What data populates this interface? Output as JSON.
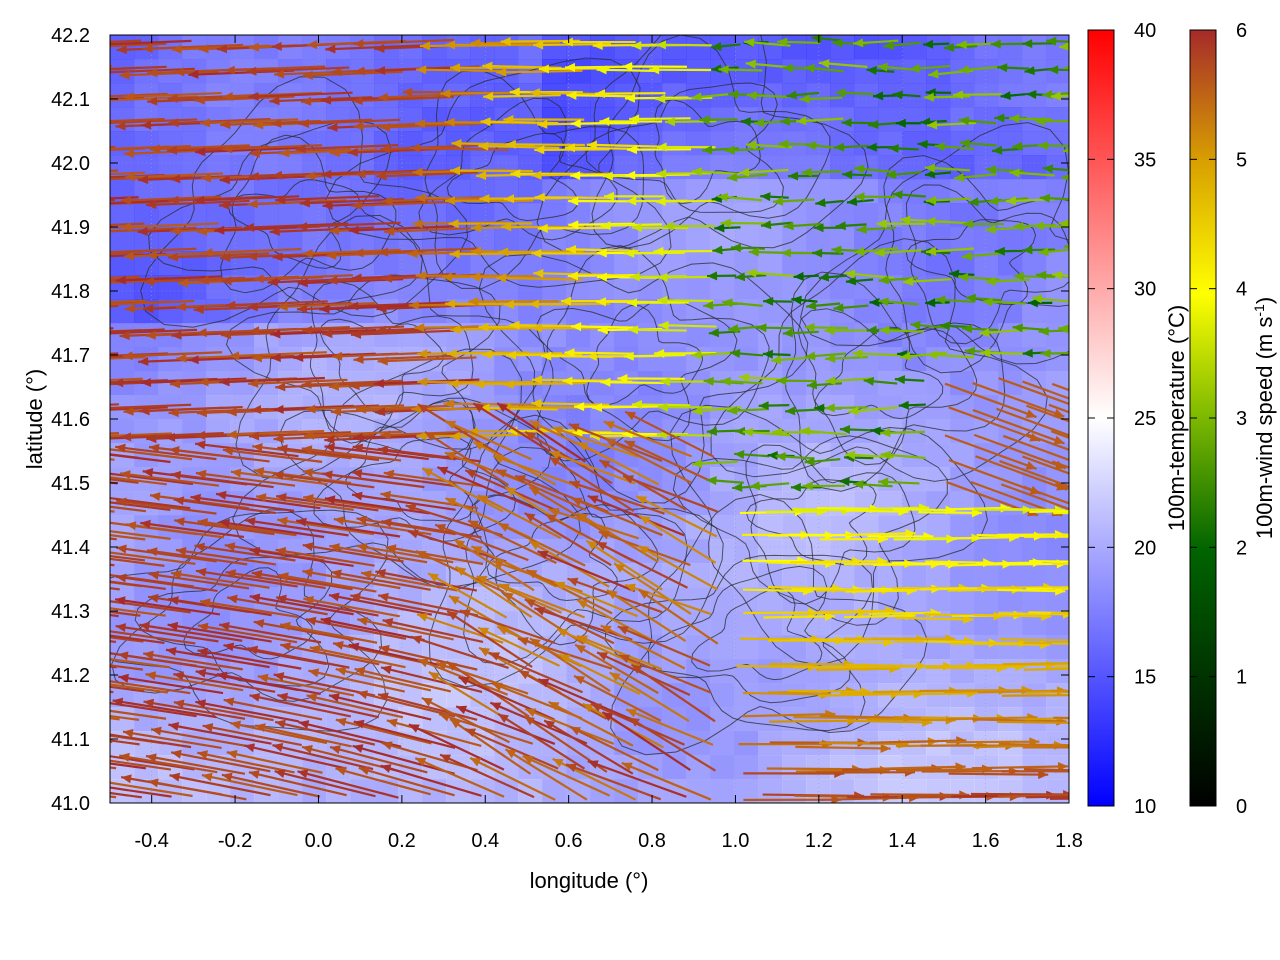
{
  "chart_data": {
    "type": "heatmap",
    "overlays": [
      "wind-vectors",
      "terrain-contours"
    ],
    "title": "",
    "xlabel": "longitude (°)",
    "ylabel": "latitude (°)",
    "xlim": [
      -0.5,
      1.8
    ],
    "ylim": [
      41.0,
      42.2
    ],
    "xticks": [
      -0.4,
      -0.2,
      0.0,
      0.2,
      0.4,
      0.6,
      0.8,
      1.0,
      1.2,
      1.4,
      1.6,
      1.8
    ],
    "xtick_labels": [
      "-0.4",
      "-0.2",
      "0.0",
      "0.2",
      "0.4",
      "0.6",
      "0.8",
      "1.0",
      "1.2",
      "1.4",
      "1.6",
      "1.8"
    ],
    "yticks": [
      41.0,
      41.1,
      41.2,
      41.3,
      41.4,
      41.5,
      41.6,
      41.7,
      41.8,
      41.9,
      42.0,
      42.1,
      42.2
    ],
    "ytick_labels": [
      "41.0",
      "41.1",
      "41.2",
      "41.3",
      "41.4",
      "41.5",
      "41.6",
      "41.7",
      "41.8",
      "41.9",
      "42.0",
      "42.1",
      "42.2"
    ],
    "grid": true,
    "colorbars": [
      {
        "label": "100m-temperature (°C)",
        "range": [
          10,
          40
        ],
        "ticks": [
          10,
          15,
          20,
          25,
          30,
          35,
          40
        ],
        "tick_labels": [
          "10",
          "15",
          "20",
          "25",
          "30",
          "35",
          "40"
        ],
        "colors": [
          "#0000ff",
          "#ffffff",
          "#ff0000"
        ]
      },
      {
        "label_main": "100m-wind speed (m s",
        "label_sup": "-1",
        "label_end": ")",
        "range": [
          0,
          6
        ],
        "ticks": [
          0,
          1,
          2,
          3,
          4,
          5,
          6
        ],
        "tick_labels": [
          "0",
          "1",
          "2",
          "3",
          "4",
          "5",
          "6"
        ],
        "colors": [
          "#000000",
          "#006400",
          "#7cb800",
          "#ffff00",
          "#d8a000",
          "#a52a2a"
        ]
      }
    ],
    "field_summary": {
      "temperature_range_shown": [
        15,
        24
      ],
      "wind_speed_range_shown": [
        0,
        6
      ]
    }
  }
}
